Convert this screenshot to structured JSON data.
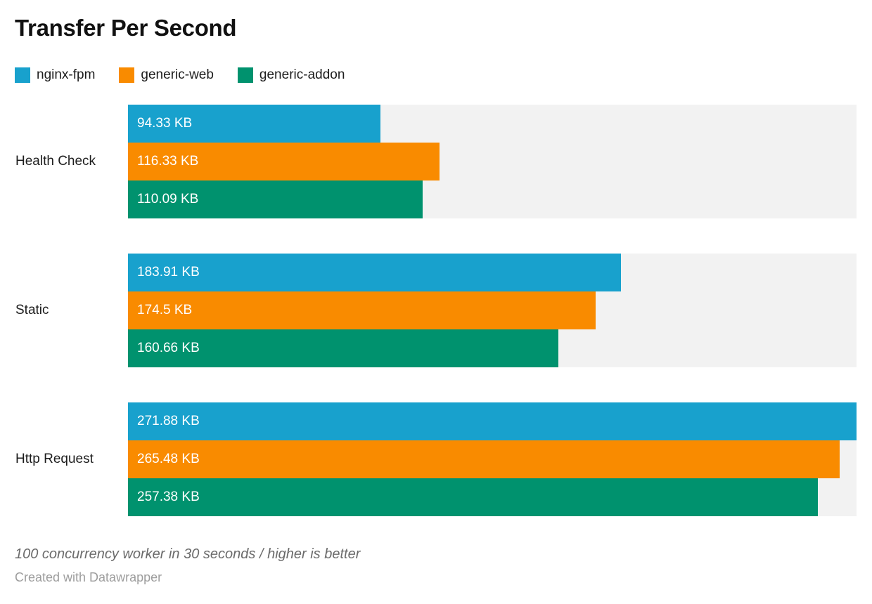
{
  "title": "Transfer Per Second",
  "legend": [
    {
      "label": "nginx-fpm",
      "color": "#18a1cd"
    },
    {
      "label": "generic-web",
      "color": "#f98b00"
    },
    {
      "label": "generic-addon",
      "color": "#00926e"
    }
  ],
  "chart_data": {
    "type": "bar",
    "orientation": "horizontal",
    "title": "Transfer Per Second",
    "categories": [
      "Health Check",
      "Static",
      "Http Request"
    ],
    "series": [
      {
        "name": "nginx-fpm",
        "color": "#18a1cd",
        "values": [
          94.33,
          183.91,
          271.88
        ],
        "labels": [
          "94.33 KB",
          "183.91 KB",
          "271.88 KB"
        ]
      },
      {
        "name": "generic-web",
        "color": "#f98b00",
        "values": [
          116.33,
          174.5,
          265.48
        ],
        "labels": [
          "116.33 KB",
          "174.5 KB",
          "265.48 KB"
        ]
      },
      {
        "name": "generic-addon",
        "color": "#00926e",
        "values": [
          110.09,
          160.66,
          257.38
        ],
        "labels": [
          "110.09 KB",
          "160.66 KB",
          "257.38 KB"
        ]
      }
    ],
    "unit": "KB",
    "xlim": [
      0,
      271.88
    ],
    "grid": false,
    "legend_position": "top",
    "track_color": "#f2f2f2",
    "value_label_position": "inside-left"
  },
  "footer": {
    "note": "100 concurrency worker in 30 seconds / higher is better",
    "attribution": "Created with Datawrapper"
  }
}
